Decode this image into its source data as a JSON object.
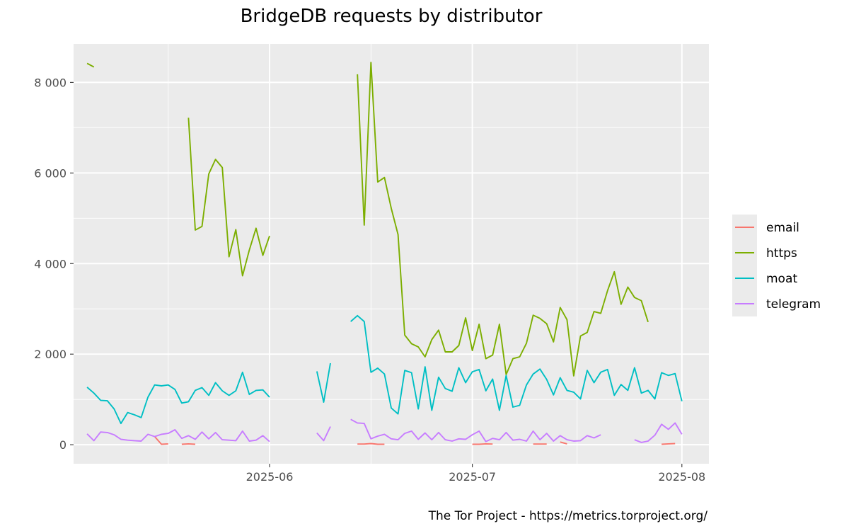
{
  "chart_data": {
    "type": "line",
    "title": "BridgeDB requests by distributor",
    "xlabel": "",
    "ylabel": "",
    "caption": "The Tor Project - https://metrics.torproject.org/",
    "x_ticks": [
      "2025-06",
      "2025-07",
      "2025-08"
    ],
    "y_ticks": [
      {
        "value": 0,
        "label": "0"
      },
      {
        "value": 2000,
        "label": "2 000"
      },
      {
        "value": 4000,
        "label": "4 000"
      },
      {
        "value": 6000,
        "label": "6 000"
      },
      {
        "value": 8000,
        "label": "8 000"
      }
    ],
    "xlim": [
      "2025-05-03",
      "2025-08-05"
    ],
    "ylim": [
      -420,
      8850
    ],
    "grid": true,
    "legend_position": "right",
    "series": [
      {
        "name": "email",
        "color": "#F8766D",
        "points": [
          [
            "2025-05-15",
            180
          ],
          [
            "2025-05-16",
            10
          ],
          [
            "2025-05-17",
            20
          ],
          [
            "2025-05-18",
            null
          ],
          [
            "2025-05-19",
            10
          ],
          [
            "2025-05-20",
            20
          ],
          [
            "2025-05-21",
            10
          ],
          [
            "2025-05-22",
            null
          ],
          [
            "2025-06-14",
            15
          ],
          [
            "2025-06-15",
            15
          ],
          [
            "2025-06-16",
            25
          ],
          [
            "2025-06-17",
            10
          ],
          [
            "2025-06-18",
            10
          ],
          [
            "2025-06-19",
            null
          ],
          [
            "2025-07-01",
            10
          ],
          [
            "2025-07-02",
            10
          ],
          [
            "2025-07-03",
            20
          ],
          [
            "2025-07-04",
            15
          ],
          [
            "2025-07-05",
            null
          ],
          [
            "2025-07-10",
            15
          ],
          [
            "2025-07-11",
            15
          ],
          [
            "2025-07-12",
            15
          ],
          [
            "2025-07-13",
            null
          ],
          [
            "2025-07-14",
            60
          ],
          [
            "2025-07-15",
            20
          ],
          [
            "2025-07-16",
            null
          ],
          [
            "2025-07-29",
            10
          ],
          [
            "2025-07-30",
            20
          ],
          [
            "2025-07-31",
            25
          ]
        ]
      },
      {
        "name": "https",
        "color": "#7CAE00",
        "points": [
          [
            "2025-05-05",
            8420
          ],
          [
            "2025-05-06",
            8340
          ],
          [
            "2025-05-07",
            null
          ],
          [
            "2025-05-20",
            7220
          ],
          [
            "2025-05-21",
            4740
          ],
          [
            "2025-05-22",
            4820
          ],
          [
            "2025-05-23",
            5980
          ],
          [
            "2025-05-24",
            6300
          ],
          [
            "2025-05-25",
            6120
          ],
          [
            "2025-05-26",
            4150
          ],
          [
            "2025-05-27",
            4750
          ],
          [
            "2025-05-28",
            3730
          ],
          [
            "2025-05-29",
            4300
          ],
          [
            "2025-05-30",
            4780
          ],
          [
            "2025-05-31",
            4180
          ],
          [
            "2025-06-01",
            4610
          ],
          [
            "2025-06-02",
            null
          ],
          [
            "2025-06-14",
            8180
          ],
          [
            "2025-06-15",
            4850
          ],
          [
            "2025-06-16",
            8440
          ],
          [
            "2025-06-17",
            5800
          ],
          [
            "2025-06-18",
            5900
          ],
          [
            "2025-06-19",
            5220
          ],
          [
            "2025-06-20",
            4640
          ],
          [
            "2025-06-21",
            2420
          ],
          [
            "2025-06-22",
            2230
          ],
          [
            "2025-06-23",
            2160
          ],
          [
            "2025-06-24",
            1940
          ],
          [
            "2025-06-25",
            2320
          ],
          [
            "2025-06-26",
            2530
          ],
          [
            "2025-06-27",
            2050
          ],
          [
            "2025-06-28",
            2050
          ],
          [
            "2025-06-29",
            2190
          ],
          [
            "2025-06-30",
            2800
          ],
          [
            "2025-07-01",
            2080
          ],
          [
            "2025-07-02",
            2660
          ],
          [
            "2025-07-03",
            1900
          ],
          [
            "2025-07-04",
            1980
          ],
          [
            "2025-07-05",
            2660
          ],
          [
            "2025-07-06",
            1550
          ],
          [
            "2025-07-07",
            1900
          ],
          [
            "2025-07-08",
            1940
          ],
          [
            "2025-07-09",
            2240
          ],
          [
            "2025-07-10",
            2860
          ],
          [
            "2025-07-11",
            2790
          ],
          [
            "2025-07-12",
            2670
          ],
          [
            "2025-07-13",
            2270
          ],
          [
            "2025-07-14",
            3030
          ],
          [
            "2025-07-15",
            2760
          ],
          [
            "2025-07-16",
            1520
          ],
          [
            "2025-07-17",
            2400
          ],
          [
            "2025-07-18",
            2480
          ],
          [
            "2025-07-19",
            2940
          ],
          [
            "2025-07-20",
            2900
          ],
          [
            "2025-07-21",
            3400
          ],
          [
            "2025-07-22",
            3820
          ],
          [
            "2025-07-23",
            3100
          ],
          [
            "2025-07-24",
            3480
          ],
          [
            "2025-07-25",
            3250
          ],
          [
            "2025-07-26",
            3180
          ],
          [
            "2025-07-27",
            2710
          ]
        ]
      },
      {
        "name": "moat",
        "color": "#00BFC4",
        "points": [
          [
            "2025-05-05",
            1270
          ],
          [
            "2025-05-06",
            1140
          ],
          [
            "2025-05-07",
            980
          ],
          [
            "2025-05-08",
            970
          ],
          [
            "2025-05-09",
            790
          ],
          [
            "2025-05-10",
            470
          ],
          [
            "2025-05-11",
            710
          ],
          [
            "2025-05-12",
            660
          ],
          [
            "2025-05-13",
            600
          ],
          [
            "2025-05-14",
            1050
          ],
          [
            "2025-05-15",
            1320
          ],
          [
            "2025-05-16",
            1300
          ],
          [
            "2025-05-17",
            1320
          ],
          [
            "2025-05-18",
            1220
          ],
          [
            "2025-05-19",
            920
          ],
          [
            "2025-05-20",
            950
          ],
          [
            "2025-05-21",
            1200
          ],
          [
            "2025-05-22",
            1260
          ],
          [
            "2025-05-23",
            1090
          ],
          [
            "2025-05-24",
            1370
          ],
          [
            "2025-05-25",
            1190
          ],
          [
            "2025-05-26",
            1090
          ],
          [
            "2025-05-27",
            1190
          ],
          [
            "2025-05-28",
            1600
          ],
          [
            "2025-05-29",
            1110
          ],
          [
            "2025-05-30",
            1200
          ],
          [
            "2025-05-31",
            1210
          ],
          [
            "2025-06-01",
            1050
          ],
          [
            "2025-06-02",
            null
          ],
          [
            "2025-06-08",
            1620
          ],
          [
            "2025-06-09",
            940
          ],
          [
            "2025-06-10",
            1800
          ],
          [
            "2025-06-11",
            null
          ],
          [
            "2025-06-13",
            2720
          ],
          [
            "2025-06-14",
            2850
          ],
          [
            "2025-06-15",
            2720
          ],
          [
            "2025-06-16",
            1600
          ],
          [
            "2025-06-17",
            1690
          ],
          [
            "2025-06-18",
            1560
          ],
          [
            "2025-06-19",
            810
          ],
          [
            "2025-06-20",
            680
          ],
          [
            "2025-06-21",
            1640
          ],
          [
            "2025-06-22",
            1590
          ],
          [
            "2025-06-23",
            790
          ],
          [
            "2025-06-24",
            1720
          ],
          [
            "2025-06-25",
            760
          ],
          [
            "2025-06-26",
            1490
          ],
          [
            "2025-06-27",
            1240
          ],
          [
            "2025-06-28",
            1180
          ],
          [
            "2025-06-29",
            1700
          ],
          [
            "2025-06-30",
            1370
          ],
          [
            "2025-07-01",
            1610
          ],
          [
            "2025-07-02",
            1660
          ],
          [
            "2025-07-03",
            1190
          ],
          [
            "2025-07-04",
            1450
          ],
          [
            "2025-07-05",
            760
          ],
          [
            "2025-07-06",
            1530
          ],
          [
            "2025-07-07",
            830
          ],
          [
            "2025-07-08",
            870
          ],
          [
            "2025-07-09",
            1320
          ],
          [
            "2025-07-10",
            1560
          ],
          [
            "2025-07-11",
            1670
          ],
          [
            "2025-07-12",
            1440
          ],
          [
            "2025-07-13",
            1100
          ],
          [
            "2025-07-14",
            1480
          ],
          [
            "2025-07-15",
            1200
          ],
          [
            "2025-07-16",
            1160
          ],
          [
            "2025-07-17",
            1010
          ],
          [
            "2025-07-18",
            1640
          ],
          [
            "2025-07-19",
            1370
          ],
          [
            "2025-07-20",
            1600
          ],
          [
            "2025-07-21",
            1660
          ],
          [
            "2025-07-22",
            1090
          ],
          [
            "2025-07-23",
            1330
          ],
          [
            "2025-07-24",
            1200
          ],
          [
            "2025-07-25",
            1700
          ],
          [
            "2025-07-26",
            1140
          ],
          [
            "2025-07-27",
            1200
          ],
          [
            "2025-07-28",
            1010
          ],
          [
            "2025-07-29",
            1590
          ],
          [
            "2025-07-30",
            1530
          ],
          [
            "2025-07-31",
            1570
          ],
          [
            "2025-08-01",
            960
          ]
        ]
      },
      {
        "name": "telegram",
        "color": "#C77CFF",
        "points": [
          [
            "2025-05-05",
            240
          ],
          [
            "2025-05-06",
            90
          ],
          [
            "2025-05-07",
            280
          ],
          [
            "2025-05-08",
            270
          ],
          [
            "2025-05-09",
            220
          ],
          [
            "2025-05-10",
            120
          ],
          [
            "2025-05-11",
            100
          ],
          [
            "2025-05-12",
            90
          ],
          [
            "2025-05-13",
            80
          ],
          [
            "2025-05-14",
            230
          ],
          [
            "2025-05-15",
            180
          ],
          [
            "2025-05-16",
            230
          ],
          [
            "2025-05-17",
            250
          ],
          [
            "2025-05-18",
            330
          ],
          [
            "2025-05-19",
            140
          ],
          [
            "2025-05-20",
            200
          ],
          [
            "2025-05-21",
            120
          ],
          [
            "2025-05-22",
            280
          ],
          [
            "2025-05-23",
            130
          ],
          [
            "2025-05-24",
            270
          ],
          [
            "2025-05-25",
            110
          ],
          [
            "2025-05-26",
            100
          ],
          [
            "2025-05-27",
            90
          ],
          [
            "2025-05-28",
            300
          ],
          [
            "2025-05-29",
            80
          ],
          [
            "2025-05-30",
            100
          ],
          [
            "2025-05-31",
            200
          ],
          [
            "2025-06-01",
            70
          ],
          [
            "2025-06-02",
            null
          ],
          [
            "2025-06-08",
            260
          ],
          [
            "2025-06-09",
            90
          ],
          [
            "2025-06-10",
            400
          ],
          [
            "2025-06-11",
            null
          ],
          [
            "2025-06-13",
            560
          ],
          [
            "2025-06-14",
            480
          ],
          [
            "2025-06-15",
            470
          ],
          [
            "2025-06-16",
            130
          ],
          [
            "2025-06-17",
            190
          ],
          [
            "2025-06-18",
            230
          ],
          [
            "2025-06-19",
            130
          ],
          [
            "2025-06-20",
            110
          ],
          [
            "2025-06-21",
            250
          ],
          [
            "2025-06-22",
            300
          ],
          [
            "2025-06-23",
            120
          ],
          [
            "2025-06-24",
            260
          ],
          [
            "2025-06-25",
            110
          ],
          [
            "2025-06-26",
            270
          ],
          [
            "2025-06-27",
            110
          ],
          [
            "2025-06-28",
            80
          ],
          [
            "2025-06-29",
            130
          ],
          [
            "2025-06-30",
            120
          ],
          [
            "2025-07-01",
            220
          ],
          [
            "2025-07-02",
            300
          ],
          [
            "2025-07-03",
            70
          ],
          [
            "2025-07-04",
            140
          ],
          [
            "2025-07-05",
            110
          ],
          [
            "2025-07-06",
            270
          ],
          [
            "2025-07-07",
            100
          ],
          [
            "2025-07-08",
            120
          ],
          [
            "2025-07-09",
            80
          ],
          [
            "2025-07-10",
            300
          ],
          [
            "2025-07-11",
            110
          ],
          [
            "2025-07-12",
            250
          ],
          [
            "2025-07-13",
            80
          ],
          [
            "2025-07-14",
            200
          ],
          [
            "2025-07-15",
            110
          ],
          [
            "2025-07-16",
            80
          ],
          [
            "2025-07-17",
            90
          ],
          [
            "2025-07-18",
            200
          ],
          [
            "2025-07-19",
            150
          ],
          [
            "2025-07-20",
            220
          ],
          [
            "2025-07-21",
            null
          ],
          [
            "2025-07-25",
            110
          ],
          [
            "2025-07-26",
            50
          ],
          [
            "2025-07-27",
            80
          ],
          [
            "2025-07-28",
            210
          ],
          [
            "2025-07-29",
            450
          ],
          [
            "2025-07-30",
            340
          ],
          [
            "2025-07-31",
            480
          ],
          [
            "2025-08-01",
            230
          ]
        ]
      }
    ]
  }
}
